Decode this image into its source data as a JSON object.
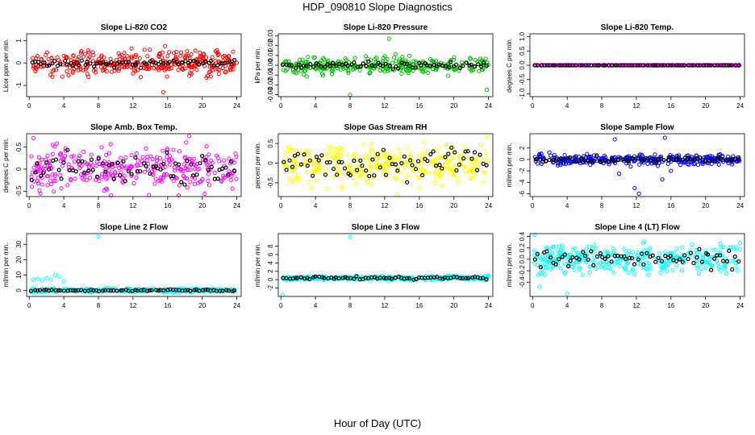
{
  "title": "HDP_090810  Slope Diagnostics",
  "xlabel": "Hour of Day (UTC)",
  "colors": {
    "black_series": "#000000"
  },
  "chart_data": [
    {
      "type": "scatter",
      "title": "Slope Li-820 CO2",
      "ylabel": "Licor ppm per min.",
      "color": "#ff0000",
      "ylim": [
        -1.5,
        1.3
      ],
      "yticks": [
        "1",
        "0",
        "-1"
      ],
      "ytick_values": [
        1,
        0,
        -1
      ],
      "xticks": [
        "0",
        "4",
        "8",
        "12",
        "16",
        "20",
        "24"
      ],
      "xlim": [
        -0.3,
        24.5
      ],
      "x_range": [
        0.2,
        24
      ],
      "center": 0,
      "spread": 0.55,
      "outliers": [
        [
          15.5,
          -1.3
        ],
        [
          15.7,
          0.75
        ],
        [
          19.2,
          0.55
        ],
        [
          21.0,
          -0.6
        ]
      ],
      "black_spread": 0.2
    },
    {
      "type": "scatter",
      "title": "Slope Li-820 Pressure",
      "ylabel": "kPa per min.",
      "color": "#00c000",
      "ylim": [
        -0.032,
        0.032
      ],
      "yticks": [
        "0.03",
        "0.02",
        "0.01",
        "0.00",
        "-0.01",
        "-0.02",
        "-0.03"
      ],
      "ytick_values": [
        0.03,
        0.02,
        0.01,
        0,
        -0.01,
        -0.02,
        -0.03
      ],
      "xticks": [
        "0",
        "4",
        "8",
        "12",
        "16",
        "20",
        "24"
      ],
      "xlim": [
        -0.3,
        24.5
      ],
      "x_range": [
        0.2,
        24
      ],
      "center": 0,
      "spread": 0.009,
      "outliers": [
        [
          8.0,
          -0.03
        ],
        [
          12.5,
          0.027
        ],
        [
          23.8,
          -0.025
        ]
      ],
      "black_spread": 0.004
    },
    {
      "type": "scatter",
      "title": "Slope Li-820 Temp.",
      "ylabel": "degrees C per min.",
      "color": "#ff00ff",
      "ylim": [
        -1.1,
        1.1
      ],
      "yticks": [
        "1.0",
        "0.5",
        "0.0",
        "-0.5",
        "-1.0"
      ],
      "ytick_values": [
        1,
        0.5,
        0,
        -0.5,
        -1
      ],
      "xticks": [
        "0",
        "4",
        "8",
        "12",
        "16",
        "20",
        "24"
      ],
      "xlim": [
        -0.3,
        24.5
      ],
      "x_range": [
        0.2,
        24
      ],
      "center": 0,
      "spread": 0.0,
      "outliers": [],
      "black_spread": 0.0
    },
    {
      "type": "scatter",
      "title": "Slope Amb. Box Temp.",
      "ylabel": "degrees C per min.",
      "color": "#ff00ff",
      "ylim": [
        -0.62,
        0.8
      ],
      "yticks": [
        "0.5",
        "0",
        "-0.5"
      ],
      "ytick_values": [
        0.5,
        0,
        -0.5
      ],
      "xticks": [
        "0",
        "4",
        "8",
        "12",
        "16",
        "20",
        "24"
      ],
      "xlim": [
        -0.3,
        24.5
      ],
      "x_range": [
        0.2,
        24
      ],
      "center": 0,
      "spread": 0.5,
      "outliers": [
        [
          0.5,
          0.7
        ],
        [
          18.5,
          0.75
        ]
      ],
      "black_spread": 0.4
    },
    {
      "type": "scatter",
      "title": "Slope Gas Stream RH",
      "ylabel": "percent per min.",
      "color": "#ffff00",
      "ylim": [
        -0.85,
        0.75
      ],
      "yticks": [
        "0.5",
        "0",
        "-0.5"
      ],
      "ytick_values": [
        0.5,
        0,
        -0.5
      ],
      "xticks": [
        "0",
        "4",
        "8",
        "12",
        "16",
        "20",
        "24"
      ],
      "xlim": [
        -0.3,
        24.5
      ],
      "x_range": [
        0.2,
        24
      ],
      "center": 0,
      "spread": 0.55,
      "outliers": [
        [
          13.5,
          -0.8
        ]
      ],
      "black_spread": 0.5
    },
    {
      "type": "scatter",
      "title": "Slope Sample Flow",
      "ylabel": "ml/min per min.",
      "color": "#0000ff",
      "ylim": [
        -6.5,
        4.5
      ],
      "yticks": [
        "2",
        "0",
        "-2",
        "-4",
        "-6"
      ],
      "ytick_values": [
        2,
        0,
        -2,
        -4,
        -6
      ],
      "xticks": [
        "0",
        "4",
        "8",
        "12",
        "16",
        "20",
        "24"
      ],
      "xlim": [
        -0.3,
        24.5
      ],
      "x_range": [
        0.2,
        24
      ],
      "center": 0,
      "spread": 0.9,
      "outliers": [
        [
          9.5,
          3.5
        ],
        [
          10.0,
          -2.5
        ],
        [
          12.3,
          -6.0
        ],
        [
          15.3,
          3.8
        ],
        [
          15.0,
          -3.5
        ],
        [
          11.8,
          -5.0
        ],
        [
          16.0,
          -2.0
        ]
      ],
      "black_spread": 0.6
    },
    {
      "type": "scatter",
      "title": "Slope Line 2 Flow",
      "ylabel": "ml/min per min.",
      "color": "#00ffff",
      "ylim": [
        -4,
        37
      ],
      "yticks": [
        "30",
        "20",
        "10",
        "0"
      ],
      "ytick_values": [
        30,
        20,
        10,
        0
      ],
      "xticks": [
        "0",
        "4",
        "8",
        "12",
        "16",
        "20",
        "24"
      ],
      "xlim": [
        -0.3,
        24.5
      ],
      "x_range": [
        0.2,
        24
      ],
      "center": 0,
      "spread": 1.2,
      "outliers": [
        [
          8.0,
          35
        ],
        [
          0.5,
          7
        ],
        [
          1.0,
          7.5
        ],
        [
          1.5,
          6.5
        ],
        [
          2.0,
          8
        ],
        [
          2.5,
          7
        ],
        [
          3.0,
          10
        ],
        [
          3.5,
          9
        ],
        [
          4.0,
          6
        ],
        [
          0.8,
          -1.5
        ]
      ],
      "black_spread": 0.6
    },
    {
      "type": "scatter",
      "title": "Slope Line 3 Flow",
      "ylabel": "ml/min per min.",
      "color": "#00ffff",
      "ylim": [
        -4,
        11
      ],
      "yticks": [
        "8",
        "6",
        "4",
        "2",
        "0",
        "-2"
      ],
      "ytick_values": [
        8,
        6,
        4,
        2,
        0,
        -2
      ],
      "xticks": [
        "0",
        "4",
        "8",
        "12",
        "16",
        "20",
        "24"
      ],
      "xlim": [
        -0.3,
        24.5
      ],
      "x_range": [
        0.2,
        24
      ],
      "center": 0.4,
      "spread": 0.5,
      "outliers": [
        [
          8.0,
          10.2
        ],
        [
          0.2,
          -3.6
        ]
      ],
      "black_spread": 0.4
    },
    {
      "type": "scatter",
      "title": "Slope Line 4 (LT) Flow",
      "ylabel": "ml/min per min.",
      "color": "#00ffff",
      "ylim": [
        -0.65,
        0.45
      ],
      "yticks": [
        "0.4",
        "0.2",
        "0.0",
        "-0.2",
        "-0.4"
      ],
      "ytick_values": [
        0.4,
        0.2,
        0,
        -0.2,
        -0.4
      ],
      "xticks": [
        "0",
        "4",
        "8",
        "12",
        "16",
        "20",
        "24"
      ],
      "xlim": [
        -0.3,
        24.5
      ],
      "x_range": [
        0.2,
        24
      ],
      "center": 0,
      "spread": 0.28,
      "outliers": [
        [
          0.3,
          0.43
        ],
        [
          4.0,
          -0.6
        ],
        [
          0.8,
          -0.48
        ]
      ],
      "black_spread": 0.22
    }
  ]
}
